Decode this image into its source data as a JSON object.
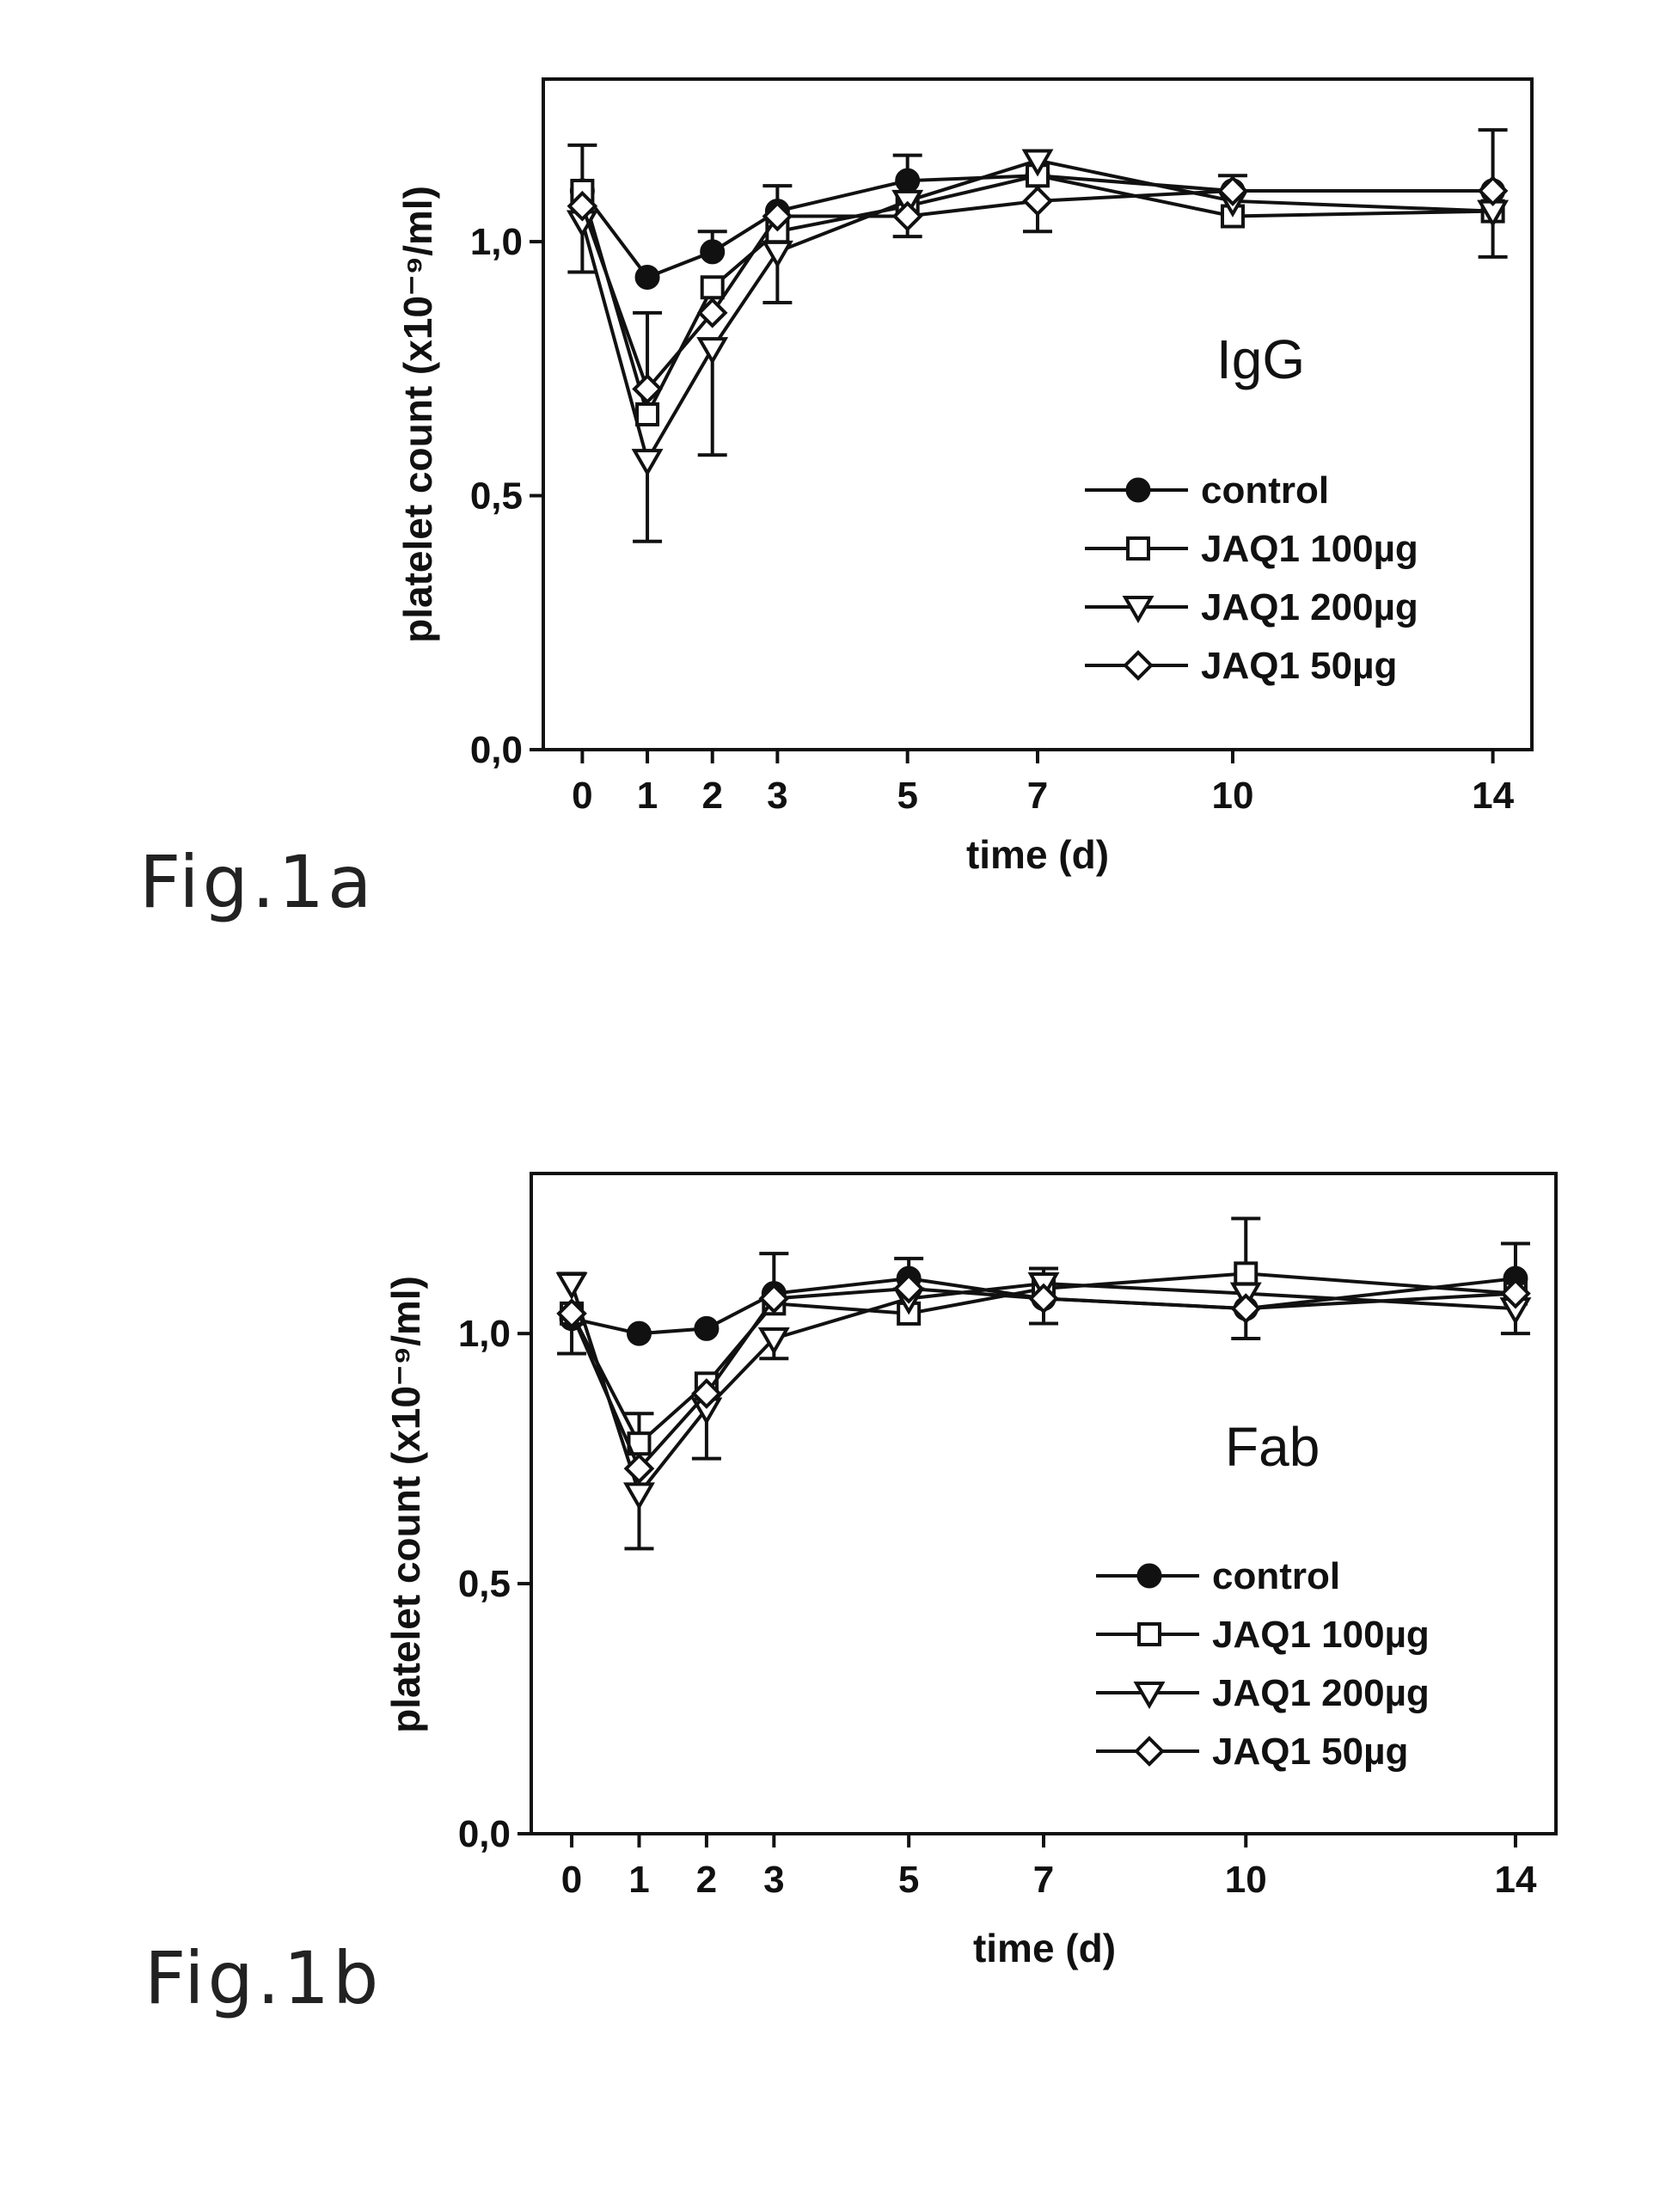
{
  "chart_data": [
    {
      "type": "line",
      "figure_label": "Fig.1a",
      "panel_label": "IgG",
      "xlabel": "time (d)",
      "ylabel": "platelet count (x10⁻⁹/ml)",
      "x": [
        0,
        1,
        2,
        3,
        5,
        7,
        10,
        14
      ],
      "x_tick_labels": [
        "0",
        "1",
        "2",
        "3",
        "5",
        "7",
        "10",
        "14"
      ],
      "xlim": [
        -0.6,
        14.6
      ],
      "ylim": [
        0,
        1.32
      ],
      "y_ticks": [
        0,
        0.5,
        1.0
      ],
      "y_tick_labels": [
        "0,0",
        "0,5",
        "1,0"
      ],
      "grid": false,
      "legend_position": "right",
      "series": [
        {
          "name": "control",
          "marker": "filled-circle",
          "values": [
            1.1,
            0.93,
            0.98,
            1.06,
            1.12,
            1.13,
            1.1,
            1.1
          ],
          "err_hi": [
            0.09,
            0.0,
            0.04,
            0.05,
            0.05,
            0.0,
            0.03,
            0.12
          ],
          "err_lo": [
            0.0,
            0.0,
            0.0,
            0.0,
            0.0,
            0.0,
            0.0,
            0.0
          ]
        },
        {
          "name": "JAQ1 100µg",
          "marker": "open-square",
          "values": [
            1.1,
            0.66,
            0.91,
            1.02,
            1.07,
            1.13,
            1.05,
            1.06
          ],
          "err_hi": [
            0.0,
            0.2,
            0.0,
            0.0,
            0.0,
            0.0,
            0.0,
            0.0
          ],
          "err_lo": [
            0.0,
            0.0,
            0.0,
            0.0,
            0.0,
            0.0,
            0.0,
            0.09
          ]
        },
        {
          "name": "JAQ1 200µg",
          "marker": "open-triangle-down",
          "values": [
            1.04,
            0.57,
            0.79,
            0.98,
            1.08,
            1.16,
            1.08,
            1.06
          ],
          "err_hi": [
            0.0,
            0.0,
            0.0,
            0.0,
            0.0,
            0.0,
            0.0,
            0.0
          ],
          "err_lo": [
            0.1,
            0.16,
            0.21,
            0.1,
            0.0,
            0.0,
            0.0,
            0.0
          ]
        },
        {
          "name": "JAQ1 50µg",
          "marker": "open-diamond",
          "values": [
            1.07,
            0.71,
            0.86,
            1.05,
            1.05,
            1.08,
            1.1,
            1.1
          ],
          "err_hi": [
            0.0,
            0.0,
            0.0,
            0.0,
            0.0,
            0.0,
            0.0,
            0.0
          ],
          "err_lo": [
            0.0,
            0.0,
            0.0,
            0.0,
            0.04,
            0.06,
            0.0,
            0.0
          ]
        }
      ]
    },
    {
      "type": "line",
      "figure_label": "Fig.1b",
      "panel_label": "Fab",
      "xlabel": "time (d)",
      "ylabel": "platelet count (x10⁻⁹/ml)",
      "x": [
        0,
        1,
        2,
        3,
        5,
        7,
        10,
        14
      ],
      "x_tick_labels": [
        "0",
        "1",
        "2",
        "3",
        "5",
        "7",
        "10",
        "14"
      ],
      "xlim": [
        -0.6,
        14.6
      ],
      "ylim": [
        0,
        1.32
      ],
      "y_ticks": [
        0,
        0.5,
        1.0
      ],
      "y_tick_labels": [
        "0,0",
        "0,5",
        "1,0"
      ],
      "grid": false,
      "legend_position": "right",
      "series": [
        {
          "name": "control",
          "marker": "filled-circle",
          "values": [
            1.03,
            1.0,
            1.01,
            1.08,
            1.11,
            1.07,
            1.05,
            1.11
          ],
          "err_hi": [
            0.0,
            0.0,
            0.0,
            0.08,
            0.04,
            0.0,
            0.0,
            0.07
          ],
          "err_lo": [
            0.07,
            0.0,
            0.0,
            0.0,
            0.0,
            0.05,
            0.0,
            0.0
          ]
        },
        {
          "name": "JAQ1 100µg",
          "marker": "open-square",
          "values": [
            1.04,
            0.78,
            0.9,
            1.06,
            1.04,
            1.09,
            1.12,
            1.08
          ],
          "err_hi": [
            0.0,
            0.06,
            0.0,
            0.0,
            0.0,
            0.0,
            0.11,
            0.0
          ],
          "err_lo": [
            0.0,
            0.0,
            0.0,
            0.0,
            0.0,
            0.0,
            0.0,
            0.0
          ]
        },
        {
          "name": "JAQ1 200µg",
          "marker": "open-triangle-down",
          "values": [
            1.1,
            0.68,
            0.85,
            0.99,
            1.07,
            1.1,
            1.08,
            1.05
          ],
          "err_hi": [
            0.02,
            0.0,
            0.0,
            0.0,
            0.0,
            0.03,
            0.0,
            0.0
          ],
          "err_lo": [
            0.0,
            0.11,
            0.1,
            0.04,
            0.0,
            0.0,
            0.0,
            0.05
          ]
        },
        {
          "name": "JAQ1 50µg",
          "marker": "open-diamond",
          "values": [
            1.04,
            0.73,
            0.88,
            1.07,
            1.09,
            1.07,
            1.05,
            1.08
          ],
          "err_hi": [
            0.0,
            0.0,
            0.0,
            0.0,
            0.0,
            0.0,
            0.0,
            0.0
          ],
          "err_lo": [
            0.0,
            0.0,
            0.0,
            0.0,
            0.0,
            0.0,
            0.06,
            0.0
          ]
        }
      ]
    }
  ]
}
